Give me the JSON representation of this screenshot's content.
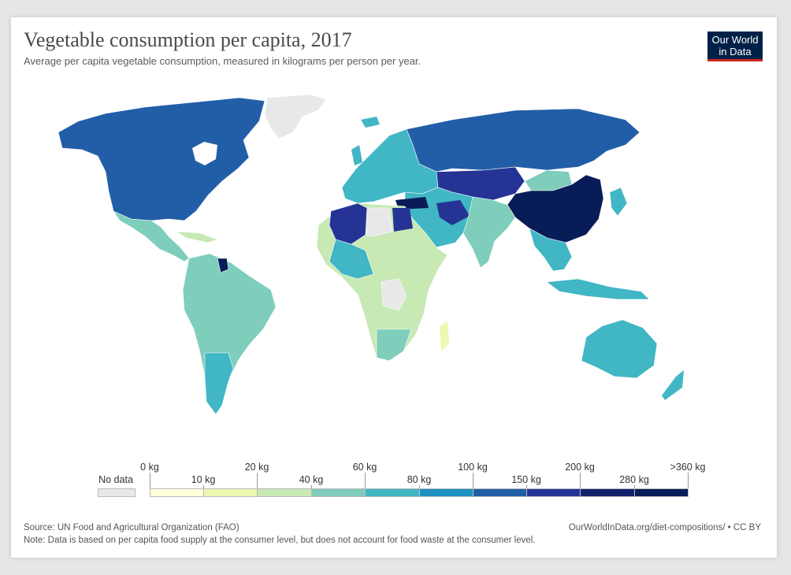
{
  "title": "Vegetable consumption per capita, 2017",
  "subtitle": "Average per capita vegetable consumption, measured in kilograms per person per year.",
  "logo": {
    "line1": "Our World",
    "line2": "in Data"
  },
  "legend": {
    "no_data_label": "No data",
    "no_data_color": "#e8e8e8",
    "upper_labels": [
      "0 kg",
      "20 kg",
      "60 kg",
      "100 kg",
      "200 kg",
      ">360 kg"
    ],
    "lower_labels": [
      "10 kg",
      "40 kg",
      "80 kg",
      "150 kg",
      "280 kg"
    ],
    "bins": [
      {
        "range": "0–10 kg",
        "color": "#ffffd9"
      },
      {
        "range": "10–20 kg",
        "color": "#edf8b1"
      },
      {
        "range": "20–40 kg",
        "color": "#c7e9b4"
      },
      {
        "range": "40–60 kg",
        "color": "#7fcdbb"
      },
      {
        "range": "60–80 kg",
        "color": "#41b6c4"
      },
      {
        "range": "80–100 kg",
        "color": "#1d91c0"
      },
      {
        "range": "100–150 kg",
        "color": "#225ea8"
      },
      {
        "range": "150–200 kg",
        "color": "#253494"
      },
      {
        "range": "200–280 kg",
        "color": "#13206c"
      },
      {
        "range": "280–360 kg",
        "color": "#081d58"
      }
    ]
  },
  "source": "Source: UN Food and Agricultural Organization (FAO)",
  "url": "OurWorldInData.org/diet-compositions/ • CC BY",
  "note": "Note: Data is based on per capita food supply at the consumer level, but does not account for food waste at the consumer level."
}
